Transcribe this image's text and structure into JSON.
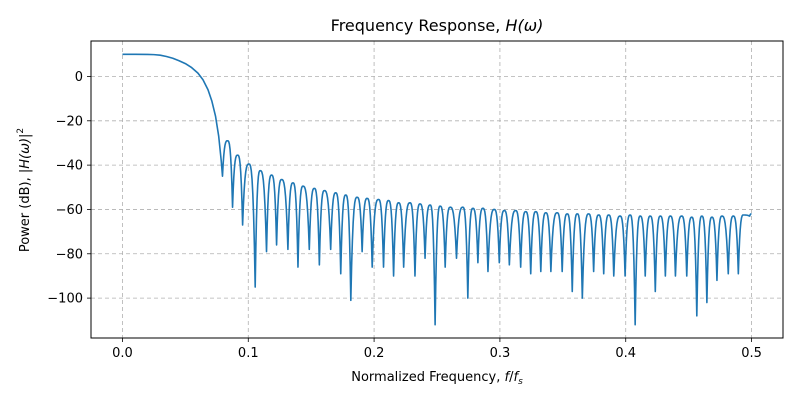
{
  "chart_data": {
    "type": "line",
    "title": "Frequency Response, H(ω)",
    "title_text": "Frequency Response, ",
    "title_math": "H(ω)",
    "xlabel_text": "Normalized Frequency, ",
    "xlabel_math_f": "f",
    "xlabel_math_fs": "f",
    "xlabel_math_sub": "s",
    "ylabel_text": "Power (dB), ",
    "ylabel_math": "|H(ω)|",
    "ylabel_sup": "2",
    "xlim": [
      -0.025,
      0.525
    ],
    "ylim": [
      -118,
      16
    ],
    "xticks": [
      0.0,
      0.1,
      0.2,
      0.3,
      0.4,
      0.5
    ],
    "xtick_labels": [
      "0.0",
      "0.1",
      "0.2",
      "0.3",
      "0.4",
      "0.5"
    ],
    "yticks": [
      0,
      -20,
      -40,
      -60,
      -80,
      -100
    ],
    "ytick_labels": [
      "0",
      "−20",
      "−40",
      "−60",
      "−80",
      "−100"
    ],
    "grid": true,
    "line_color": "#1f77b4",
    "passband": [
      [
        0.0,
        10.0
      ],
      [
        0.01,
        10.0
      ],
      [
        0.02,
        9.95
      ],
      [
        0.025,
        9.85
      ],
      [
        0.03,
        9.6
      ],
      [
        0.035,
        9.0
      ],
      [
        0.04,
        8.2
      ],
      [
        0.045,
        7.1
      ],
      [
        0.05,
        5.8
      ],
      [
        0.055,
        4.0
      ],
      [
        0.06,
        1.5
      ],
      [
        0.064,
        -1.5
      ],
      [
        0.068,
        -6.0
      ],
      [
        0.071,
        -11.0
      ],
      [
        0.074,
        -18.0
      ],
      [
        0.0765,
        -27.0
      ],
      [
        0.0785,
        -38.0
      ],
      [
        0.0795,
        -45.0
      ]
    ],
    "stopband_nulls": [
      [
        0.0795,
        -45
      ],
      [
        0.0875,
        -59
      ],
      [
        0.0955,
        -67
      ],
      [
        0.1055,
        -95
      ],
      [
        0.1145,
        -79
      ],
      [
        0.1225,
        -76
      ],
      [
        0.1315,
        -78
      ],
      [
        0.1395,
        -86
      ],
      [
        0.1485,
        -78
      ],
      [
        0.1565,
        -85
      ],
      [
        0.1655,
        -78
      ],
      [
        0.1735,
        -89
      ],
      [
        0.1815,
        -101
      ],
      [
        0.1905,
        -79
      ],
      [
        0.1985,
        -86
      ],
      [
        0.2075,
        -86
      ],
      [
        0.2155,
        -90
      ],
      [
        0.2235,
        -86
      ],
      [
        0.2325,
        -90
      ],
      [
        0.2405,
        -82
      ],
      [
        0.2485,
        -112
      ],
      [
        0.2565,
        -86
      ],
      [
        0.2655,
        -82
      ],
      [
        0.2745,
        -100
      ],
      [
        0.2825,
        -84
      ],
      [
        0.2905,
        -88
      ],
      [
        0.2995,
        -84
      ],
      [
        0.3075,
        -85
      ],
      [
        0.3165,
        -86
      ],
      [
        0.3245,
        -89
      ],
      [
        0.3325,
        -88
      ],
      [
        0.3405,
        -88
      ],
      [
        0.3495,
        -88
      ],
      [
        0.3575,
        -97
      ],
      [
        0.3655,
        -100
      ],
      [
        0.3745,
        -88
      ],
      [
        0.3825,
        -89
      ],
      [
        0.3905,
        -90
      ],
      [
        0.3995,
        -90
      ],
      [
        0.4075,
        -112
      ],
      [
        0.4155,
        -90
      ],
      [
        0.4235,
        -97
      ],
      [
        0.4315,
        -90
      ],
      [
        0.4395,
        -90
      ],
      [
        0.4485,
        -90
      ],
      [
        0.4565,
        -108
      ],
      [
        0.4645,
        -102
      ],
      [
        0.4725,
        -92
      ],
      [
        0.4815,
        -89
      ],
      [
        0.4895,
        -89
      ],
      [
        0.4985,
        -63
      ]
    ],
    "stopband_peaks": [
      [
        0.0835,
        -29
      ],
      [
        0.0915,
        -35.5
      ],
      [
        0.1005,
        -39.5
      ],
      [
        0.1095,
        -42.5
      ],
      [
        0.1185,
        -44.5
      ],
      [
        0.1265,
        -46.5
      ],
      [
        0.1355,
        -48
      ],
      [
        0.1435,
        -49.5
      ],
      [
        0.1525,
        -50.5
      ],
      [
        0.1605,
        -51.5
      ],
      [
        0.1695,
        -52.5
      ],
      [
        0.1775,
        -53.5
      ],
      [
        0.1865,
        -54.5
      ],
      [
        0.1945,
        -55
      ],
      [
        0.2035,
        -55.5
      ],
      [
        0.2115,
        -56
      ],
      [
        0.2195,
        -57
      ],
      [
        0.2285,
        -57
      ],
      [
        0.2365,
        -57.5
      ],
      [
        0.2445,
        -58
      ],
      [
        0.2525,
        -58.5
      ],
      [
        0.2605,
        -59
      ],
      [
        0.2705,
        -59
      ],
      [
        0.2785,
        -59.5
      ],
      [
        0.2865,
        -59.5
      ],
      [
        0.2955,
        -60
      ],
      [
        0.3035,
        -60.5
      ],
      [
        0.3125,
        -60.5
      ],
      [
        0.3205,
        -61
      ],
      [
        0.3285,
        -61
      ],
      [
        0.3365,
        -61.5
      ],
      [
        0.3455,
        -61.5
      ],
      [
        0.3535,
        -62
      ],
      [
        0.3615,
        -62
      ],
      [
        0.3705,
        -62
      ],
      [
        0.3785,
        -62.5
      ],
      [
        0.3865,
        -62.5
      ],
      [
        0.3955,
        -63
      ],
      [
        0.4035,
        -62.5
      ],
      [
        0.4115,
        -63
      ],
      [
        0.4195,
        -63
      ],
      [
        0.4275,
        -63
      ],
      [
        0.4355,
        -63
      ],
      [
        0.4445,
        -63
      ],
      [
        0.4525,
        -63.5
      ],
      [
        0.4605,
        -63
      ],
      [
        0.4685,
        -63.5
      ],
      [
        0.4765,
        -63
      ],
      [
        0.4855,
        -63
      ],
      [
        0.4935,
        -62.5
      ],
      [
        0.5,
        -62
      ]
    ]
  }
}
